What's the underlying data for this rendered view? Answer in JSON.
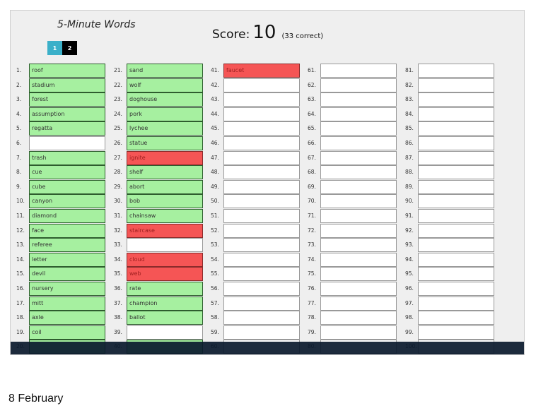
{
  "title": "5-Minute Words",
  "score": {
    "label": "Score:",
    "value": "10",
    "correct": "(33 correct)"
  },
  "pages": [
    "1",
    "2"
  ],
  "active_page": "1",
  "colors": {
    "correct": "#a6f0a0",
    "wrong": "#f55555",
    "empty": "#ffffff",
    "page_active": "#3bb0c9"
  },
  "words": {
    "1": {
      "w": "roof",
      "s": "g"
    },
    "2": {
      "w": "stadium",
      "s": "g"
    },
    "3": {
      "w": "forest",
      "s": "g"
    },
    "4": {
      "w": "assumption",
      "s": "g"
    },
    "5": {
      "w": "regatta",
      "s": "g"
    },
    "6": {
      "w": "",
      "s": ""
    },
    "7": {
      "w": "trash",
      "s": "g"
    },
    "8": {
      "w": "cue",
      "s": "g"
    },
    "9": {
      "w": "cube",
      "s": "g"
    },
    "10": {
      "w": "canyon",
      "s": "g"
    },
    "11": {
      "w": "diamond",
      "s": "g"
    },
    "12": {
      "w": "face",
      "s": "g"
    },
    "13": {
      "w": "referee",
      "s": "g"
    },
    "14": {
      "w": "letter",
      "s": "g"
    },
    "15": {
      "w": "devil",
      "s": "g"
    },
    "16": {
      "w": "nursery",
      "s": "g"
    },
    "17": {
      "w": "mitt",
      "s": "g"
    },
    "18": {
      "w": "axle",
      "s": "g"
    },
    "19": {
      "w": "coil",
      "s": "g"
    },
    "20": {
      "w": "",
      "s": "g"
    },
    "21": {
      "w": "sand",
      "s": "g"
    },
    "22": {
      "w": "wolf",
      "s": "g"
    },
    "23": {
      "w": "doghouse",
      "s": "g"
    },
    "24": {
      "w": "pork",
      "s": "g"
    },
    "25": {
      "w": "lychee",
      "s": "g"
    },
    "26": {
      "w": "statue",
      "s": "g"
    },
    "27": {
      "w": "ignite",
      "s": "r"
    },
    "28": {
      "w": "shelf",
      "s": "g"
    },
    "29": {
      "w": "abort",
      "s": "g"
    },
    "30": {
      "w": "bob",
      "s": "g"
    },
    "31": {
      "w": "chainsaw",
      "s": "g"
    },
    "32": {
      "w": "staircase",
      "s": "r"
    },
    "33": {
      "w": "",
      "s": ""
    },
    "34": {
      "w": "cloud",
      "s": "r"
    },
    "35": {
      "w": "web",
      "s": "r"
    },
    "36": {
      "w": "rate",
      "s": "g"
    },
    "37": {
      "w": "champion",
      "s": "g"
    },
    "38": {
      "w": "ballot",
      "s": "g"
    },
    "39": {
      "w": "",
      "s": ""
    },
    "40": {
      "w": "",
      "s": "g"
    },
    "41": {
      "w": "faucet",
      "s": "r"
    }
  },
  "date": "8 February"
}
